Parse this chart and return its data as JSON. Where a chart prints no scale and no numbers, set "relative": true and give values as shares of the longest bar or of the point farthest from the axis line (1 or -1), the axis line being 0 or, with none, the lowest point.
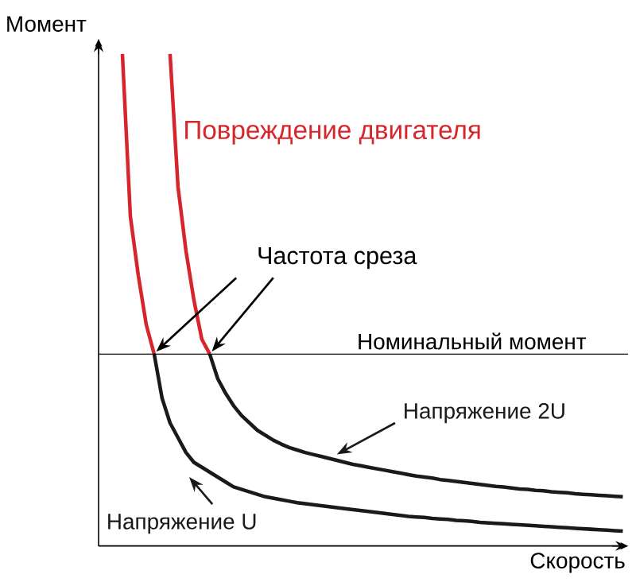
{
  "chart_data": {
    "type": "line",
    "relative": true,
    "xlabel": "Скорость",
    "ylabel": "Момент",
    "categories": [
      null,
      null,
      null,
      null,
      null,
      null,
      null,
      null,
      null,
      null,
      null,
      null,
      null,
      null,
      null,
      null,
      null,
      null,
      null,
      null,
      null,
      null,
      null,
      null,
      null,
      null,
      null,
      null,
      null,
      null,
      null,
      null,
      null,
      null,
      null,
      null,
      null,
      null,
      null,
      null,
      null,
      null,
      null,
      null,
      null,
      null,
      null,
      null,
      null,
      null,
      null,
      null,
      null,
      null,
      null,
      null,
      null,
      null,
      null,
      null,
      null,
      null,
      null,
      null,
      null,
      null,
      null
    ],
    "series": [
      {
        "color": "#d7262b",
        "values": [
          null,
          null,
          null,
          1.0,
          0.67,
          0.55,
          0.45,
          0.39,
          null,
          null,
          null,
          null,
          null,
          null,
          null,
          null,
          null,
          null,
          null,
          null,
          null,
          null,
          null,
          null,
          null,
          null,
          null,
          null,
          null,
          null,
          null,
          null,
          null,
          null,
          null,
          null,
          null,
          null,
          null,
          null,
          null,
          null,
          null,
          null,
          null,
          null,
          null,
          null,
          null,
          null,
          null,
          null,
          null,
          null,
          null,
          null,
          null,
          null,
          null,
          null,
          null,
          null,
          null,
          null,
          null,
          null,
          null
        ]
      },
      {
        "name": "Напряжение U",
        "color": "#1a1a1a",
        "values": [
          null,
          null,
          null,
          null,
          null,
          null,
          null,
          0.39,
          0.3,
          0.25,
          0.22,
          0.19,
          0.17,
          0.16,
          0.15,
          0.14,
          0.13,
          0.12,
          0.115,
          0.11,
          0.105,
          0.1,
          0.097,
          0.094,
          0.091,
          0.088,
          0.086,
          0.084,
          0.082,
          0.08,
          0.078,
          0.076,
          0.074,
          0.072,
          0.07,
          0.068,
          0.066,
          0.064,
          0.062,
          0.06,
          0.059,
          0.058,
          0.056,
          0.055,
          0.054,
          0.052,
          0.051,
          0.05,
          0.048,
          0.047,
          0.046,
          0.045,
          0.044,
          0.043,
          0.042,
          0.041,
          0.04,
          0.039,
          0.038,
          0.037,
          0.036,
          0.035,
          0.034,
          0.033,
          0.032,
          0.031,
          0.03
        ]
      },
      {
        "color": "#d7262b",
        "values": [
          null,
          null,
          null,
          null,
          null,
          null,
          null,
          null,
          null,
          1.0,
          0.73,
          0.6,
          0.5,
          0.42,
          0.39,
          null,
          null,
          null,
          null,
          null,
          null,
          null,
          null,
          null,
          null,
          null,
          null,
          null,
          null,
          null,
          null,
          null,
          null,
          null,
          null,
          null,
          null,
          null,
          null,
          null,
          null,
          null,
          null,
          null,
          null,
          null,
          null,
          null,
          null,
          null,
          null,
          null,
          null,
          null,
          null,
          null,
          null,
          null,
          null,
          null,
          null,
          null,
          null,
          null,
          null,
          null,
          null
        ]
      },
      {
        "name": "Напряжение 2U",
        "color": "#1a1a1a",
        "values": [
          null,
          null,
          null,
          null,
          null,
          null,
          null,
          null,
          null,
          null,
          null,
          null,
          null,
          null,
          0.39,
          0.34,
          0.31,
          0.285,
          0.265,
          0.25,
          0.235,
          0.225,
          0.215,
          0.207,
          0.2,
          0.195,
          0.19,
          0.186,
          0.182,
          0.178,
          0.174,
          0.17,
          0.166,
          0.163,
          0.16,
          0.157,
          0.154,
          0.151,
          0.148,
          0.145,
          0.142,
          0.14,
          0.138,
          0.135,
          0.133,
          0.131,
          0.129,
          0.127,
          0.125,
          0.123,
          0.121,
          0.12,
          0.118,
          0.116,
          0.115,
          0.113,
          0.112,
          0.11,
          0.109,
          0.108,
          0.106,
          0.105,
          0.104,
          0.103,
          0.102,
          0.101,
          0.1
        ]
      }
    ],
    "ref_lines": [
      {
        "axis": "y",
        "value": 0.39,
        "label": "Номинальный момент"
      }
    ],
    "annotations": [
      "Повреждение двигателя",
      "Частота среза"
    ]
  }
}
